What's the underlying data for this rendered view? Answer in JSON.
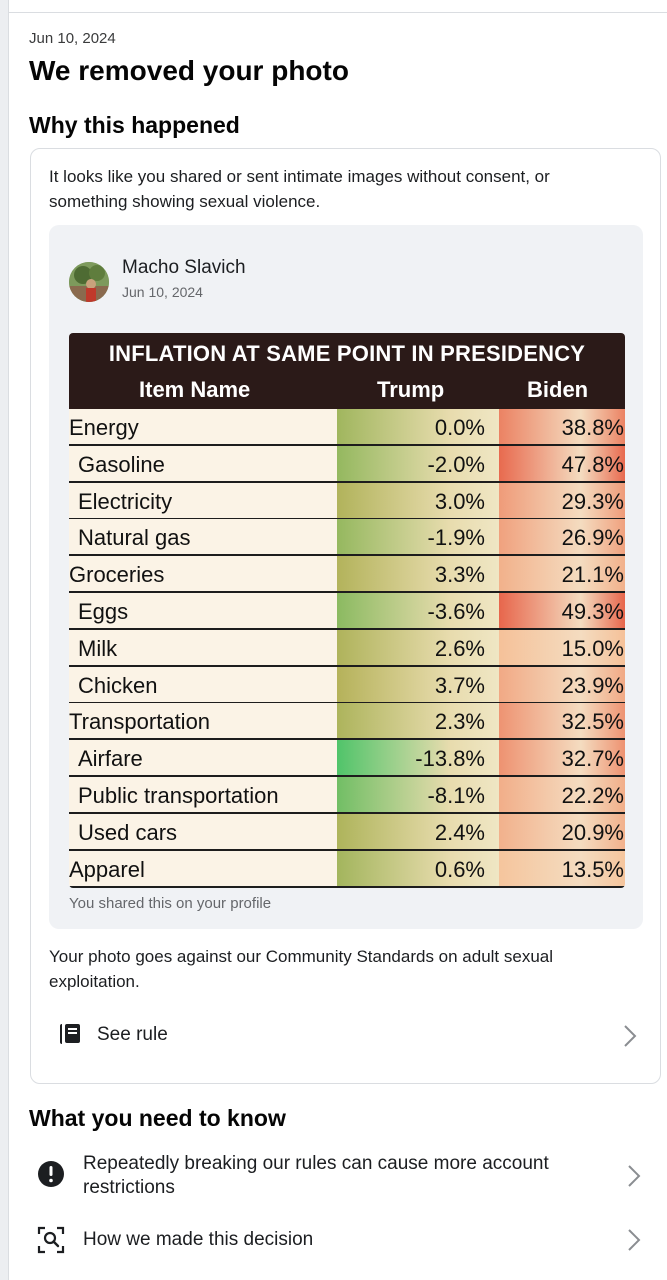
{
  "notice": {
    "date": "Jun 10, 2024",
    "title": "We removed your photo",
    "why_heading": "Why this happened",
    "reason": "It looks like you shared or sent intimate images without consent, or something showing sexual violence."
  },
  "post": {
    "author": "Macho Slavich",
    "date": "Jun 10, 2024",
    "shared_note": "You shared this on your profile",
    "image_table": {
      "title": "INFLATION AT SAME POINT IN PRESIDENCY",
      "columns": [
        "Item Name",
        "Trump",
        "Biden"
      ],
      "rows": [
        {
          "name": "Energy",
          "trump": "0.0%",
          "biden": "38.8%"
        },
        {
          "name": "Gasoline",
          "trump": "-2.0%",
          "biden": "47.8%"
        },
        {
          "name": "Electricity",
          "trump": "3.0%",
          "biden": "29.3%"
        },
        {
          "name": "Natural gas",
          "trump": "-1.9%",
          "biden": "26.9%"
        },
        {
          "name": "Groceries",
          "trump": "3.3%",
          "biden": "21.1%"
        },
        {
          "name": "Eggs",
          "trump": "-3.6%",
          "biden": "49.3%"
        },
        {
          "name": "Milk",
          "trump": "2.6%",
          "biden": "15.0%"
        },
        {
          "name": "Chicken",
          "trump": "3.7%",
          "biden": "23.9%"
        },
        {
          "name": "Transportation",
          "trump": "2.3%",
          "biden": "32.5%"
        },
        {
          "name": "Airfare",
          "trump": "-13.8%",
          "biden": "32.7%"
        },
        {
          "name": "Public transportation",
          "trump": "-8.1%",
          "biden": "22.2%"
        },
        {
          "name": "Used cars",
          "trump": "2.4%",
          "biden": "20.9%"
        },
        {
          "name": "Apparel",
          "trump": "0.6%",
          "biden": "13.5%"
        }
      ]
    }
  },
  "violation_text": "Your photo goes against our Community Standards on adult sexual exploitation.",
  "see_rule_label": "See rule",
  "know": {
    "heading": "What you need to know",
    "items": [
      {
        "label": "Repeatedly breaking our rules can cause more account restrictions"
      },
      {
        "label": "How we made this decision"
      }
    ]
  },
  "colors": {
    "header_bg": "#2b1a18",
    "trump_green": "#4fc46a",
    "trump_olive": "#b7b25a",
    "biden_red": "#e7644a",
    "cream": "#fbf3e6"
  }
}
